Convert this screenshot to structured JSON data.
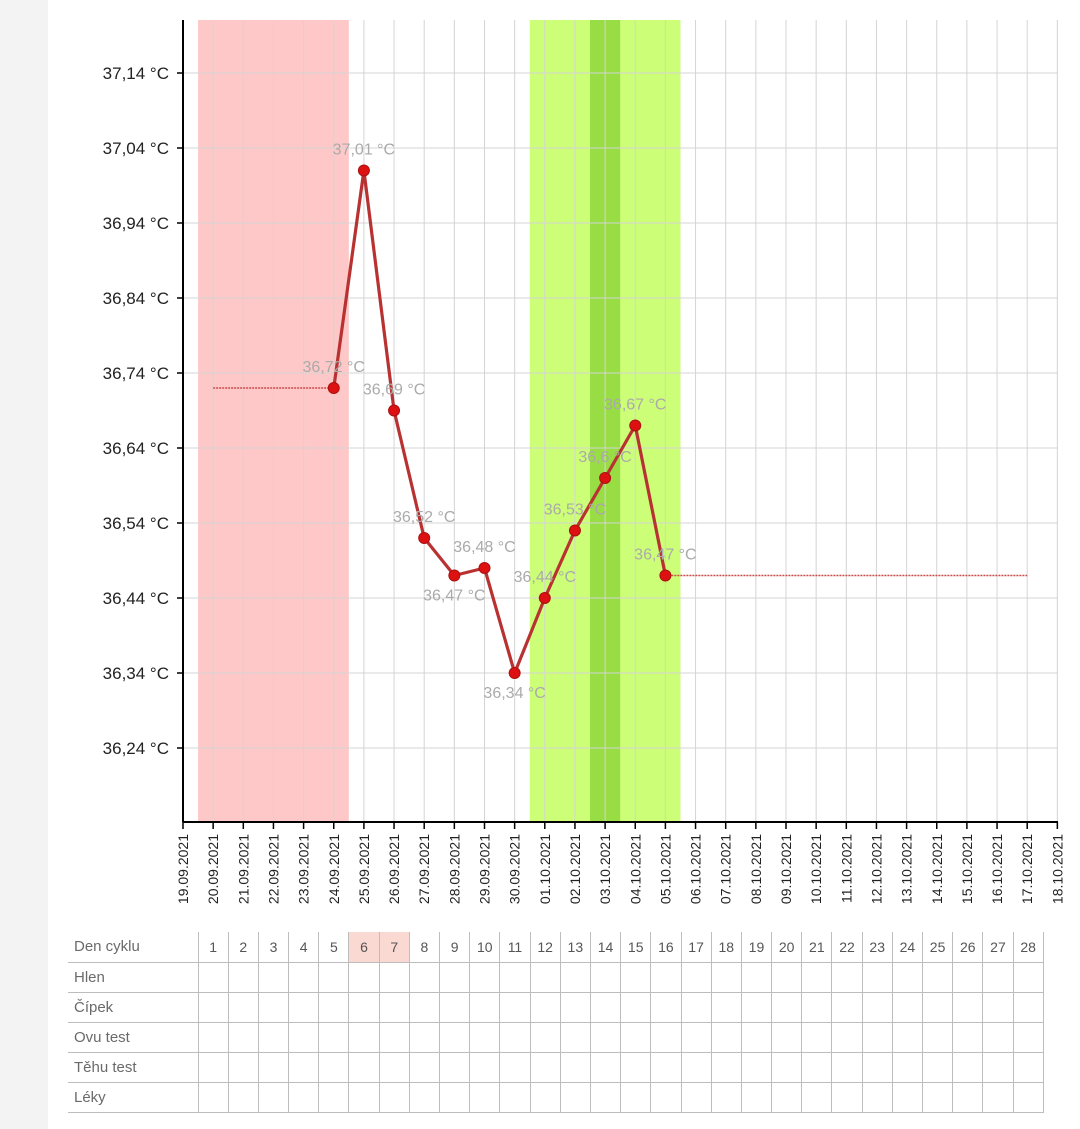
{
  "chart_data": {
    "type": "line",
    "x_dates": [
      "19.09.2021",
      "20.09.2021",
      "21.09.2021",
      "22.09.2021",
      "23.09.2021",
      "24.09.2021",
      "25.09.2021",
      "26.09.2021",
      "27.09.2021",
      "28.09.2021",
      "29.09.2021",
      "30.09.2021",
      "01.10.2021",
      "02.10.2021",
      "03.10.2021",
      "04.10.2021",
      "05.10.2021",
      "06.10.2021",
      "07.10.2021",
      "08.10.2021",
      "09.10.2021",
      "10.10.2021",
      "11.10.2021",
      "12.10.2021",
      "13.10.2021",
      "14.10.2021",
      "15.10.2021",
      "16.10.2021",
      "17.10.2021",
      "18.10.2021"
    ],
    "y_ticks": [
      {
        "value": 36.24,
        "label": "36,24 °C"
      },
      {
        "value": 36.34,
        "label": "36,34 °C"
      },
      {
        "value": 36.44,
        "label": "36,44 °C"
      },
      {
        "value": 36.54,
        "label": "36,54 °C"
      },
      {
        "value": 36.64,
        "label": "36,64 °C"
      },
      {
        "value": 36.74,
        "label": "36,74 °C"
      },
      {
        "value": 36.84,
        "label": "36,84 °C"
      },
      {
        "value": 36.94,
        "label": "36,94 °C"
      },
      {
        "value": 37.04,
        "label": "37,04 °C"
      },
      {
        "value": 37.14,
        "label": "37,14 °C"
      }
    ],
    "ylim": [
      36.14,
      37.2
    ],
    "series": [
      {
        "points": [
          {
            "x": "24.09.2021",
            "y": 36.72,
            "label": "36,72 °C"
          },
          {
            "x": "25.09.2021",
            "y": 37.01,
            "label": "37,01 °C"
          },
          {
            "x": "26.09.2021",
            "y": 36.69,
            "label": "36,69 °C"
          },
          {
            "x": "27.09.2021",
            "y": 36.52,
            "label": "36,52 °C"
          },
          {
            "x": "28.09.2021",
            "y": 36.47,
            "label": "36,47 °C"
          },
          {
            "x": "29.09.2021",
            "y": 36.48,
            "label": "36,48 °C"
          },
          {
            "x": "30.09.2021",
            "y": 36.34,
            "label": "36,34 °C"
          },
          {
            "x": "01.10.2021",
            "y": 36.44,
            "label": "36,44 °C"
          },
          {
            "x": "02.10.2021",
            "y": 36.53,
            "label": "36,53 °C"
          },
          {
            "x": "03.10.2021",
            "y": 36.6,
            "label": "36,6 °C"
          },
          {
            "x": "04.10.2021",
            "y": 36.67,
            "label": "36,67 °C"
          },
          {
            "x": "05.10.2021",
            "y": 36.47,
            "label": "36,47 °C"
          }
        ]
      }
    ],
    "reference_lines": [
      {
        "from": "20.09.2021",
        "to": "24.09.2021",
        "y": 36.72
      },
      {
        "from": "05.10.2021",
        "to": "17.10.2021",
        "y": 36.47
      }
    ],
    "bands": [
      {
        "from": "20.09.2021",
        "to": "24.09.2021",
        "color": "#ffc8c8",
        "meaning": "menstruation"
      },
      {
        "from": "01.10.2021",
        "to": "05.10.2021",
        "color": "#ccff77",
        "meaning": "fertile"
      },
      {
        "from": "03.10.2021",
        "to": "03.10.2021",
        "color": "#99dd44",
        "meaning": "ovulation"
      }
    ],
    "grid": true,
    "colors": {
      "line": "#b83232",
      "marker": "#dd1111",
      "label": "#aaaaaa",
      "grid": "#d4d4d4",
      "axis": "#000000"
    }
  },
  "table": {
    "header_label": "Den cyklu",
    "days": [
      "1",
      "2",
      "3",
      "4",
      "5",
      "6",
      "7",
      "8",
      "9",
      "10",
      "11",
      "12",
      "13",
      "14",
      "15",
      "16",
      "17",
      "18",
      "19",
      "20",
      "21",
      "22",
      "23",
      "24",
      "25",
      "26",
      "27",
      "28"
    ],
    "highlighted_days": [
      "6",
      "7"
    ],
    "rows": [
      {
        "label": "Hlen"
      },
      {
        "label": "Čípek"
      },
      {
        "label": "Ovu test"
      },
      {
        "label": "Těhu test"
      },
      {
        "label": "Léky"
      }
    ]
  }
}
